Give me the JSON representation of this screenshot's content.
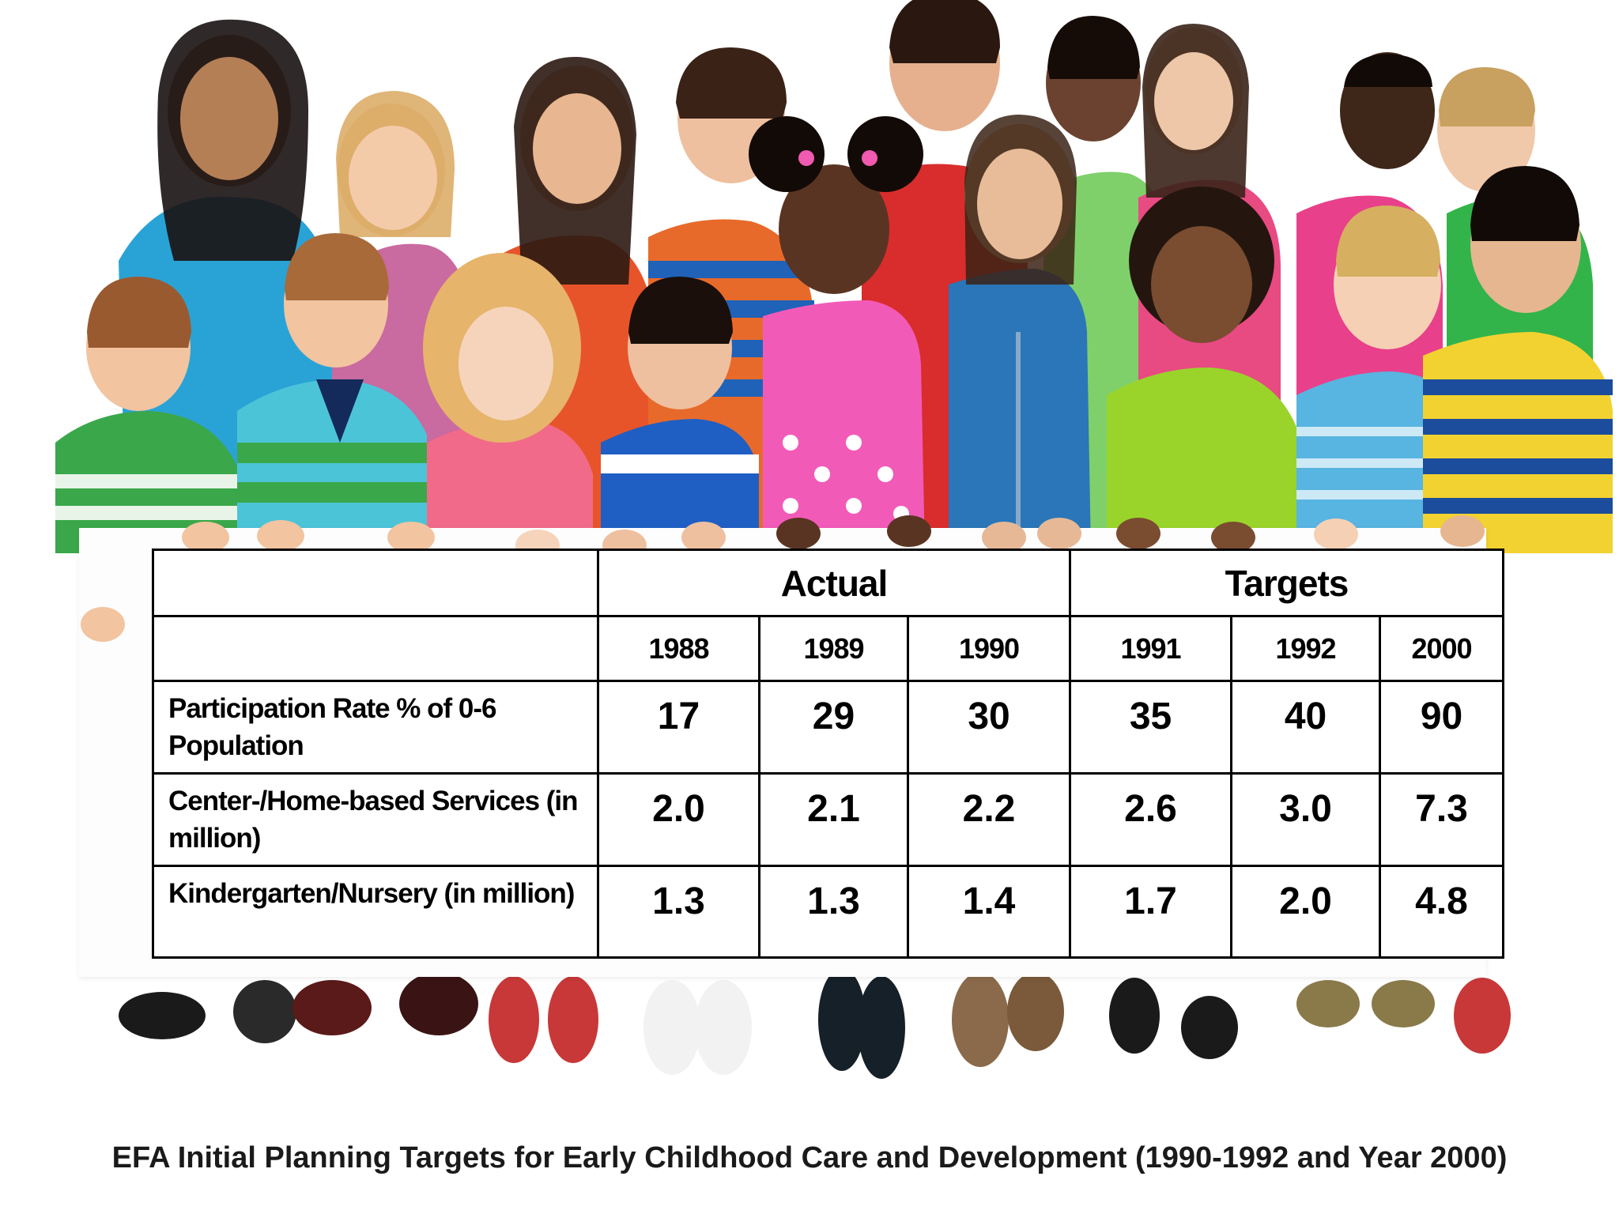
{
  "table": {
    "groups": {
      "actual": "Actual",
      "targets": "Targets"
    },
    "years": [
      "1988",
      "1989",
      "1990",
      "1991",
      "1992",
      "2000"
    ],
    "rows": [
      {
        "label": "Participation Rate % of 0-6 Population",
        "values": [
          "17",
          "29",
          "30",
          "35",
          "40",
          "90"
        ]
      },
      {
        "label": "Center-/Home-based Services (in million)",
        "values": [
          "2.0",
          "2.1",
          "2.2",
          "2.6",
          "3.0",
          "7.3"
        ]
      },
      {
        "label": "Kindergarten/Nursery (in million)",
        "values": [
          "1.3",
          "1.3",
          "1.4",
          "1.7",
          "2.0",
          "4.8"
        ]
      }
    ]
  },
  "caption": "EFA Initial Planning Targets for Early Childhood Care and Development (1990-1992 and Year 2000)",
  "photo": {
    "subject": "group of smiling children holding a white banner",
    "palette": [
      "#2aa0d8",
      "#e8522a",
      "#f05aa8",
      "#8cd63a",
      "#f2d230",
      "#1c4c9c",
      "#e03030",
      "#3bb84a"
    ]
  }
}
